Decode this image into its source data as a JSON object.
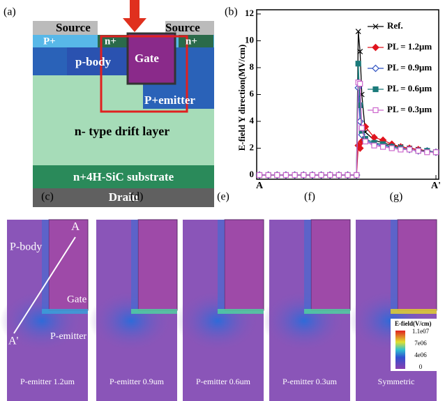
{
  "panel_a": {
    "label": "(a)",
    "source_left": "Source",
    "source_right": "Source",
    "p_plus": "P+",
    "n_plus_left": "n+",
    "n_plus_right": "n+",
    "p_body": "p-body",
    "gate": "Gate",
    "p_emitter": "P+emitter",
    "drift": "n- type drift layer",
    "substrate": "n+4H-SiC substrate",
    "drain": "Drain"
  },
  "chart_data": {
    "type": "line",
    "label": "(b)",
    "ylabel": "E-field Y direction(MV/cm)",
    "x": [
      0,
      0.05,
      0.1,
      0.15,
      0.2,
      0.25,
      0.3,
      0.35,
      0.4,
      0.45,
      0.5,
      0.55,
      0.56,
      0.57,
      0.58,
      0.6,
      0.65,
      0.7,
      0.75,
      0.8,
      0.85,
      0.9,
      0.95,
      1.0
    ],
    "xlim": [
      0,
      1
    ],
    "xticks": [
      {
        "value": 0,
        "label": "A"
      },
      {
        "value": 1,
        "label": "A'"
      }
    ],
    "ylim": [
      0,
      12
    ],
    "yticks": [
      0,
      2,
      4,
      6,
      8,
      10,
      12
    ],
    "series": [
      {
        "name": "Ref.",
        "color": "#000000",
        "marker": "x",
        "values": [
          0,
          0,
          0,
          0,
          0,
          0,
          0,
          0,
          0,
          0,
          0,
          0,
          10.7,
          9.2,
          6.0,
          3.2,
          2.6,
          2.4,
          2.2,
          2.1,
          2.0,
          1.9,
          1.8,
          1.7
        ]
      },
      {
        "name": "PL = 1.2μm",
        "color": "#e0141e",
        "marker": "diamond",
        "values": [
          0,
          0,
          0,
          0,
          0,
          0,
          0,
          0,
          0,
          0,
          0,
          0,
          2.2,
          2.0,
          2.5,
          3.6,
          2.8,
          2.6,
          2.3,
          2.1,
          2.0,
          1.9,
          1.8,
          1.7
        ]
      },
      {
        "name": "PL = 0.9μm",
        "color": "#2b4fc0",
        "marker": "diamond-open",
        "values": [
          0,
          0,
          0,
          0,
          0,
          0,
          0,
          0,
          0,
          0,
          0,
          0,
          6.5,
          4.0,
          3.0,
          2.6,
          2.3,
          2.2,
          2.1,
          2.0,
          1.9,
          1.8,
          1.8,
          1.7
        ]
      },
      {
        "name": "PL = 0.6μm",
        "color": "#1a7a7a",
        "marker": "square",
        "values": [
          0,
          0,
          0,
          0,
          0,
          0,
          0,
          0,
          0,
          0,
          0,
          0,
          8.3,
          5.2,
          3.3,
          2.7,
          2.4,
          2.3,
          2.1,
          2.0,
          1.9,
          1.8,
          1.8,
          1.7
        ]
      },
      {
        "name": "PL = 0.3μm",
        "color": "#cc66cc",
        "marker": "square-open",
        "values": [
          0,
          0,
          0,
          0,
          0,
          0,
          0,
          0,
          0,
          0,
          0,
          0,
          6.9,
          6.8,
          3.5,
          2.5,
          2.2,
          2.1,
          2.0,
          1.9,
          1.9,
          1.8,
          1.7,
          1.7
        ]
      }
    ]
  },
  "panels": [
    {
      "label": "(c)",
      "caption": "P-emitter 1.2um"
    },
    {
      "label": "(d)",
      "caption": "P-emitter 0.9um"
    },
    {
      "label": "(e)",
      "caption": "P-emitter 0.6um"
    },
    {
      "label": "(f)",
      "caption": "P-emitter 0.3um"
    },
    {
      "label": "(g)",
      "caption": "Symmetric"
    }
  ],
  "panel_c_notes": {
    "p_body": "P-body",
    "a": "A",
    "gate": "Gate",
    "p_emitter": "P-emitter",
    "a_prime": "A'"
  },
  "colorbar": {
    "title": "E-field(V/cm)",
    "labels": [
      "1.1e07",
      "7e06",
      "4e06",
      "0"
    ]
  }
}
